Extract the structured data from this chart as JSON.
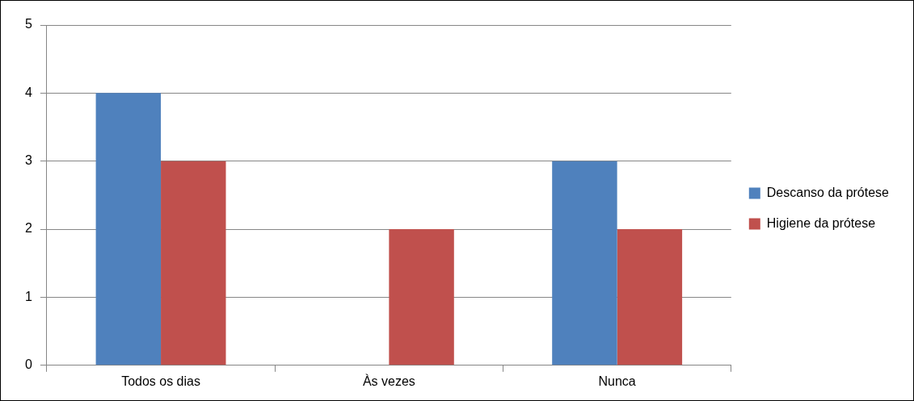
{
  "chart_data": {
    "type": "bar",
    "categories": [
      "Todos os dias",
      "Às vezes",
      "Nunca"
    ],
    "series": [
      {
        "name": "Descanso da prótese",
        "color": "#4f81bd",
        "values": [
          4,
          0,
          3
        ]
      },
      {
        "name": "Higiene da prótese",
        "color": "#c0504d",
        "values": [
          3,
          2,
          2
        ]
      }
    ],
    "ylim": [
      0,
      5
    ],
    "yticks": [
      0,
      1,
      2,
      3,
      4,
      5
    ],
    "grid": "y",
    "legend": "right"
  }
}
